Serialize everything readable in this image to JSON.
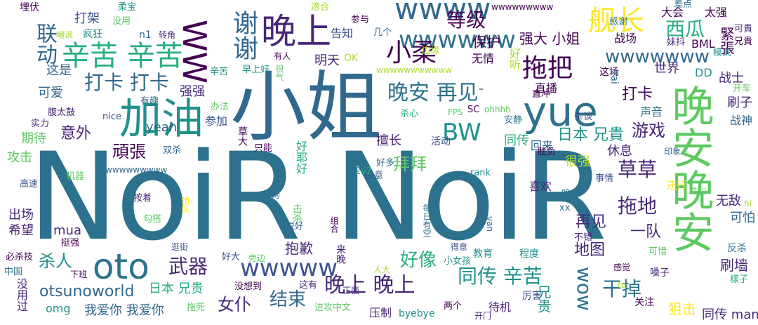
{
  "palette": {
    "a": "#440154",
    "b": "#3b528b",
    "c": "#2c728e",
    "d": "#21918c",
    "e": "#28ae80",
    "f": "#5ec962",
    "g": "#addc30",
    "h": "#fde725",
    "i": "#482878",
    "j": "#31688e"
  },
  "words": [
    {
      "text": "NoiR NoiR",
      "color": "c"
    },
    {
      "text": "小姐",
      "color": "j"
    },
    {
      "text": "晚安晚安",
      "color": "f"
    },
    {
      "text": "yue",
      "color": "c"
    },
    {
      "text": "加油",
      "color": "d"
    },
    {
      "text": "晚上",
      "color": "i"
    },
    {
      "text": "WW",
      "color": "a"
    },
    {
      "text": "wwww",
      "color": "j"
    },
    {
      "text": "wwwwww",
      "color": "c"
    },
    {
      "text": "舰长",
      "color": "h"
    },
    {
      "text": "谢谢",
      "color": "j"
    },
    {
      "text": "辛苦 辛苦",
      "color": "e"
    },
    {
      "text": "oto",
      "color": "c"
    },
    {
      "text": "小柔",
      "color": "a"
    },
    {
      "text": "拖把",
      "color": "a"
    },
    {
      "text": "晚安 再见",
      "color": "c"
    },
    {
      "text": "BW",
      "color": "d"
    },
    {
      "text": "等级",
      "color": "a"
    },
    {
      "text": "西瓜",
      "color": "e"
    },
    {
      "text": "wwwwwww",
      "color": "j"
    },
    {
      "text": "打卡 打卡",
      "color": "j"
    },
    {
      "text": "联动",
      "color": "j"
    },
    {
      "text": "保护",
      "color": "a"
    },
    {
      "text": "强大 小姐",
      "color": "a"
    },
    {
      "text": "战场",
      "color": "a"
    },
    {
      "text": "大会",
      "color": "a"
    },
    {
      "text": "太强",
      "color": "a"
    },
    {
      "text": "差点",
      "color": "c"
    },
    {
      "text": "感谢",
      "color": "c"
    },
    {
      "text": "兄貴",
      "color": "a"
    },
    {
      "text": "可貴",
      "color": "i"
    },
    {
      "text": "BML",
      "color": "a"
    },
    {
      "text": "緊張",
      "color": "a"
    },
    {
      "text": "模式",
      "color": "d"
    },
    {
      "text": "妹抖",
      "color": "i"
    },
    {
      "text": "世界",
      "color": "i"
    },
    {
      "text": "DD",
      "color": "d"
    },
    {
      "text": "战士",
      "color": "i"
    },
    {
      "text": "可爱",
      "color": "j"
    },
    {
      "text": "强强",
      "color": "i"
    },
    {
      "text": "这是",
      "color": "j"
    },
    {
      "text": "辛苦",
      "color": "d"
    },
    {
      "text": "早上好",
      "color": "d"
    },
    {
      "text": "明天",
      "color": "i"
    },
    {
      "text": "打卡",
      "color": "a"
    },
    {
      "text": "直播",
      "color": "a"
    },
    {
      "text": "声音",
      "color": "c"
    },
    {
      "text": "刷子",
      "color": "i"
    },
    {
      "text": "战神",
      "color": "j"
    },
    {
      "text": "游戏",
      "color": "i"
    },
    {
      "text": "日本 兄貴",
      "color": "d"
    },
    {
      "text": "意外",
      "color": "i"
    },
    {
      "text": "期待",
      "color": "f"
    },
    {
      "text": "頑張",
      "color": "a"
    },
    {
      "text": "拜拜",
      "color": "f"
    },
    {
      "text": "草草",
      "color": "i"
    },
    {
      "text": "拖地",
      "color": "i"
    },
    {
      "text": "攻击",
      "color": "f"
    },
    {
      "text": "很强",
      "color": "g"
    },
    {
      "text": "休息",
      "color": "i"
    },
    {
      "text": "同传",
      "color": "e"
    },
    {
      "text": "同传 辛苦",
      "color": "d"
    },
    {
      "text": "晚上 晚上",
      "color": "i"
    },
    {
      "text": "女仆",
      "color": "i"
    },
    {
      "text": "结束",
      "color": "j"
    },
    {
      "text": "wwwww",
      "color": "b"
    },
    {
      "text": "otsunoworld",
      "color": "j"
    },
    {
      "text": "我爱你 我爱你",
      "color": "j"
    },
    {
      "text": "杀人",
      "color": "d"
    },
    {
      "text": "武器",
      "color": "i"
    },
    {
      "text": "好像",
      "color": "e"
    },
    {
      "text": "抱歉",
      "color": "i"
    },
    {
      "text": "一队",
      "color": "i"
    },
    {
      "text": "再见",
      "color": "i"
    },
    {
      "text": "地图",
      "color": "i"
    },
    {
      "text": "刷墙",
      "color": "i"
    },
    {
      "text": "wow",
      "color": "c"
    },
    {
      "text": "干掉",
      "color": "c"
    },
    {
      "text": "狙击",
      "color": "h"
    },
    {
      "text": "同传 man",
      "color": "i"
    },
    {
      "text": "喜欢",
      "color": "i"
    },
    {
      "text": "无敌",
      "color": "i"
    },
    {
      "text": "可怕",
      "color": "j"
    },
    {
      "text": "mua",
      "color": "i"
    },
    {
      "text": "希望",
      "color": "i"
    },
    {
      "text": "出场",
      "color": "i"
    },
    {
      "text": "日本 兄贵",
      "color": "e"
    },
    {
      "text": "omg",
      "color": "d"
    },
    {
      "text": "yeah",
      "color": "j"
    },
    {
      "text": "打架",
      "color": "b"
    },
    {
      "text": "埋伏",
      "color": "a"
    },
    {
      "text": "柔宝",
      "color": "d"
    },
    {
      "text": "没用",
      "color": "f"
    },
    {
      "text": "適合",
      "color": "g"
    },
    {
      "text": "参与",
      "color": "a"
    },
    {
      "text": "告知",
      "color": "b"
    },
    {
      "text": "几个",
      "color": "j"
    },
    {
      "text": "wwwwwwwww",
      "color": "a"
    },
    {
      "text": "wwwwwwwwwww",
      "color": "g"
    },
    {
      "text": "OK",
      "color": "g"
    },
    {
      "text": "边缘",
      "color": "g"
    },
    {
      "text": "无情",
      "color": "a"
    },
    {
      "text": "好听",
      "color": "g"
    },
    {
      "text": "n1",
      "color": "j"
    },
    {
      "text": "转角",
      "color": "i"
    },
    {
      "text": "嘲讽",
      "color": "g"
    },
    {
      "text": "疯狂",
      "color": "d"
    },
    {
      "text": "有人",
      "color": "a"
    },
    {
      "text": "很气",
      "color": "f"
    },
    {
      "text": "有趣",
      "color": "j"
    },
    {
      "text": "这场",
      "color": "a"
    },
    {
      "text": "zai",
      "color": "j"
    },
    {
      "text": "开车",
      "color": "f"
    },
    {
      "text": "直冲",
      "color": "a"
    },
    {
      "text": "杂谈",
      "color": "b"
    },
    {
      "text": "腹太鼓",
      "color": "i"
    },
    {
      "text": "实力",
      "color": "i"
    },
    {
      "text": "nice",
      "color": "b"
    },
    {
      "text": "办法",
      "color": "f"
    },
    {
      "text": "参加",
      "color": "b"
    },
    {
      "text": "杀心",
      "color": "e"
    },
    {
      "text": "FPS",
      "color": "f"
    },
    {
      "text": "SC",
      "color": "a"
    },
    {
      "text": "ohhhh",
      "color": "f"
    },
    {
      "text": "安静",
      "color": "c"
    },
    {
      "text": "双杀",
      "color": "j"
    },
    {
      "text": "草大",
      "color": "a"
    },
    {
      "text": "只能",
      "color": "a"
    },
    {
      "text": "好耶好",
      "color": "e"
    },
    {
      "text": "擅长",
      "color": "i"
    },
    {
      "text": "活动",
      "color": "b"
    },
    {
      "text": "回来",
      "color": "j"
    },
    {
      "text": "胜负",
      "color": "a"
    },
    {
      "text": "印象",
      "color": "c"
    },
    {
      "text": "高速",
      "color": "b"
    },
    {
      "text": "机器",
      "color": "f"
    },
    {
      "text": "wwwwwwwww2",
      "color": "j"
    },
    {
      "text": "好多",
      "color": "j"
    },
    {
      "text": "杀意",
      "color": "b"
    },
    {
      "text": "2v2",
      "color": "e"
    },
    {
      "text": "rank",
      "color": "d"
    },
    {
      "text": "查询",
      "color": "c"
    },
    {
      "text": "事情",
      "color": "b"
    },
    {
      "text": "还行",
      "color": "h"
    },
    {
      "text": "胜利",
      "color": "f"
    },
    {
      "text": "按着",
      "color": "i"
    },
    {
      "text": "组队",
      "color": "h"
    },
    {
      "text": "晚好",
      "color": "c"
    },
    {
      "text": "hi",
      "color": "g"
    },
    {
      "text": "犯规",
      "color": "j"
    },
    {
      "text": "勾搭",
      "color": "f"
    },
    {
      "text": "击杀",
      "color": "f"
    },
    {
      "text": "说好",
      "color": "j"
    },
    {
      "text": "每日有空",
      "color": "c"
    },
    {
      "text": "xx",
      "color": "c"
    },
    {
      "text": "van",
      "color": "j"
    },
    {
      "text": "组合",
      "color": "a"
    },
    {
      "text": "不错",
      "color": "i"
    },
    {
      "text": "挺强",
      "color": "a"
    },
    {
      "text": "逛街",
      "color": "b"
    },
    {
      "text": "必杀技",
      "color": "a"
    },
    {
      "text": "好大",
      "color": "b"
    },
    {
      "text": "旁边",
      "color": "f"
    },
    {
      "text": "来晚",
      "color": "i"
    },
    {
      "text": "教育",
      "color": "d"
    },
    {
      "text": "程度",
      "color": "d"
    },
    {
      "text": "小女孩",
      "color": "d"
    },
    {
      "text": "得意",
      "color": "b"
    },
    {
      "text": "可惜",
      "color": "f"
    },
    {
      "text": "反杀",
      "color": "c"
    },
    {
      "text": "感觉",
      "color": "a"
    },
    {
      "text": "嗓子",
      "color": "i"
    },
    {
      "text": "中国",
      "color": "c"
    },
    {
      "text": "下班",
      "color": "a"
    },
    {
      "text": "人大",
      "color": "g"
    },
    {
      "text": "樣子",
      "color": "e"
    },
    {
      "text": "没用过",
      "color": "i"
    },
    {
      "text": "拖死",
      "color": "f"
    },
    {
      "text": "没想到",
      "color": "a"
    },
    {
      "text": "这有",
      "color": "i"
    },
    {
      "text": "正面",
      "color": "i"
    },
    {
      "text": "tql",
      "color": "g"
    },
    {
      "text": "进攻中文",
      "color": "f"
    },
    {
      "text": "压制",
      "color": "i"
    },
    {
      "text": "byebye",
      "color": "d"
    },
    {
      "text": "两个",
      "color": "a"
    },
    {
      "text": "开门",
      "color": "i"
    },
    {
      "text": "待机",
      "color": "i"
    },
    {
      "text": "厉害",
      "color": "b"
    },
    {
      "text": "兄贵",
      "color": "d"
    },
    {
      "text": "关注",
      "color": "a"
    },
    {
      "text": "w-dash",
      "color": "a"
    }
  ]
}
